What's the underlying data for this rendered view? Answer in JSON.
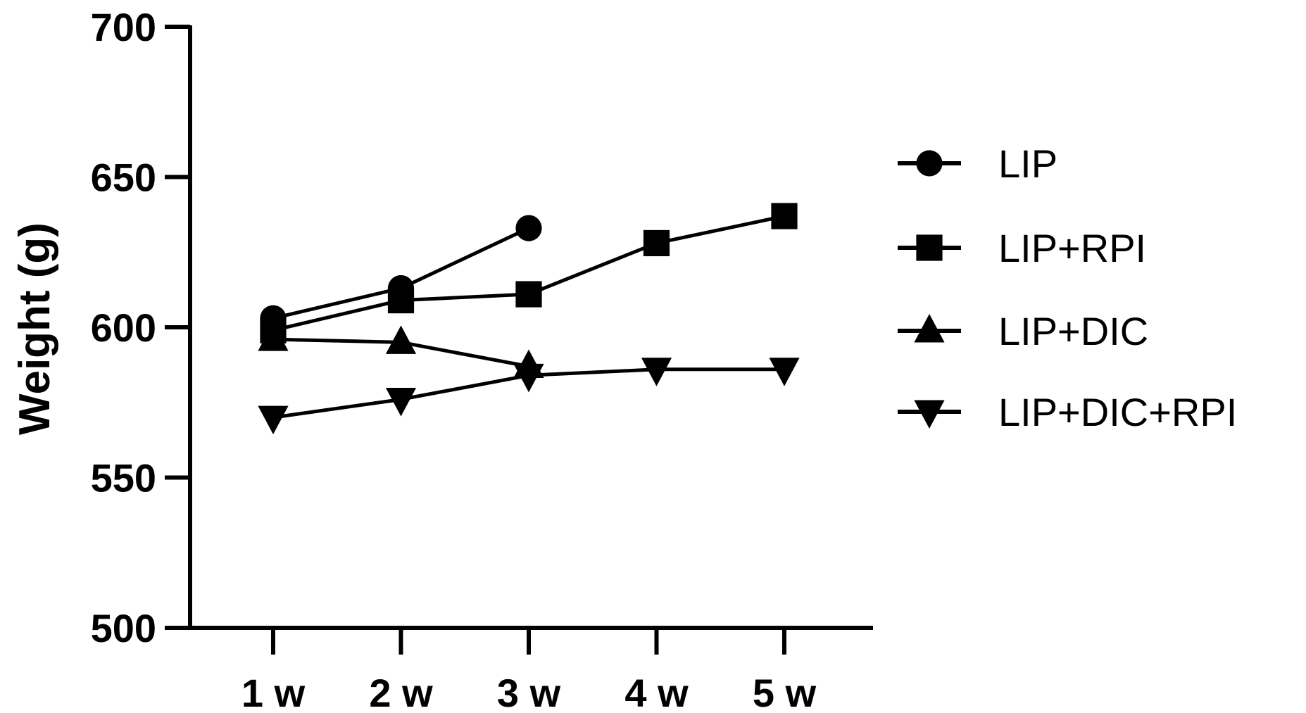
{
  "chart_data": {
    "type": "line",
    "title": "",
    "xlabel": "",
    "ylabel": "Weight (g)",
    "categories": [
      "1 w",
      "2 w",
      "3 w",
      "4 w",
      "5 w"
    ],
    "ylim": [
      500,
      700
    ],
    "yticks": [
      500,
      550,
      600,
      650,
      700
    ],
    "grid": false,
    "legend": "right",
    "series": [
      {
        "name": "LIP",
        "marker": "circle",
        "values": [
          603,
          613,
          633,
          null,
          null
        ]
      },
      {
        "name": "LIP+RPI",
        "marker": "square",
        "values": [
          599,
          609,
          611,
          628,
          637
        ]
      },
      {
        "name": "LIP+DIC",
        "marker": "triangle-up",
        "values": [
          596,
          595,
          587,
          null,
          null
        ]
      },
      {
        "name": "LIP+DIC+RPI",
        "marker": "triangle-down",
        "values": [
          570,
          576,
          584,
          586,
          586
        ]
      }
    ],
    "color": "#000000"
  }
}
